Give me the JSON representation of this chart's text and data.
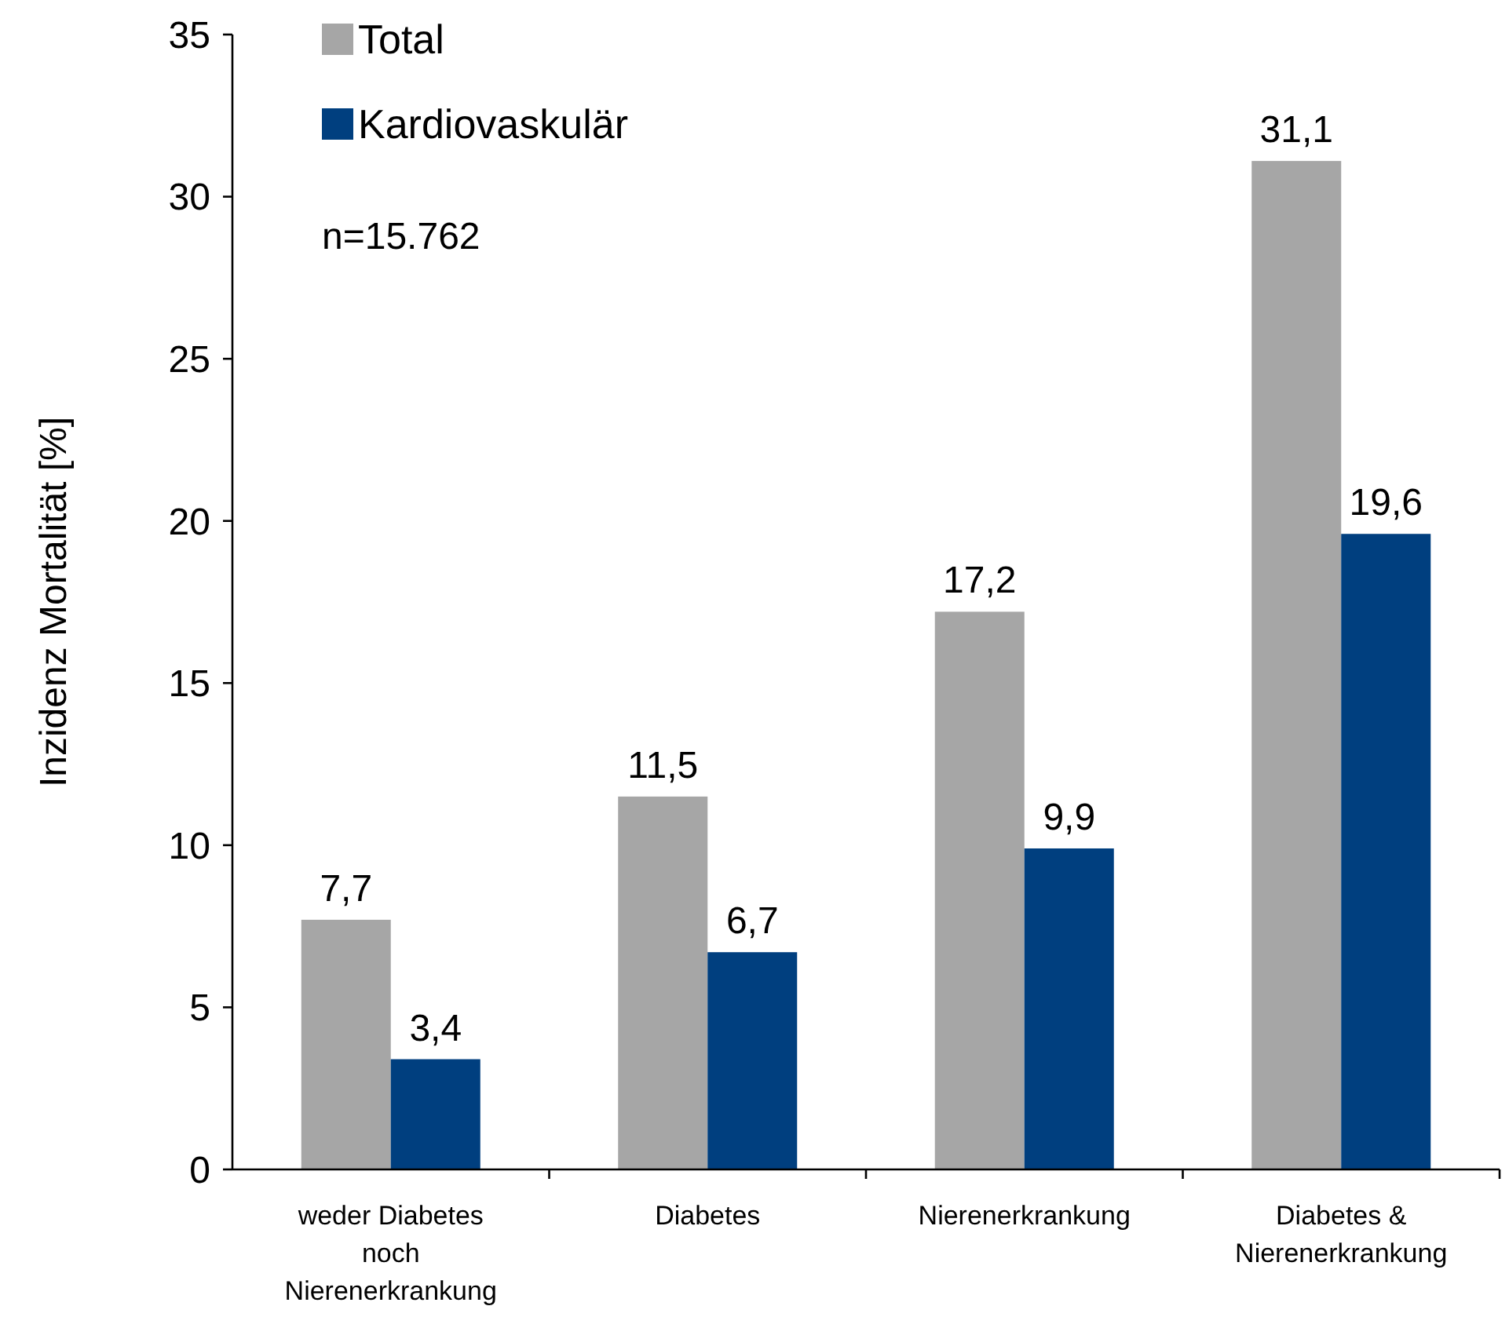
{
  "chart_data": {
    "type": "bar",
    "ylabel": "Inzidenz Mortalität [%]",
    "categories": [
      "weder Diabetes noch Nierenerkrankung",
      "Diabetes",
      "Nierenerkrankung",
      "Diabetes & Nierenerkrankung"
    ],
    "series": [
      {
        "name": "Total",
        "color": "#a6a6a6",
        "values": [
          7.7,
          11.5,
          17.2,
          31.1
        ],
        "value_labels": [
          "7,7",
          "11,5",
          "17,2",
          "31,1"
        ]
      },
      {
        "name": "Kardiovaskulär",
        "color": "#003f7f",
        "values": [
          3.4,
          6.7,
          9.9,
          19.6
        ],
        "value_labels": [
          "3,4",
          "6,7",
          "9,9",
          "19,6"
        ]
      }
    ],
    "ylim": [
      0,
      35
    ],
    "yticks": [
      0,
      5,
      10,
      15,
      20,
      25,
      30,
      35
    ],
    "grid": false,
    "legend": "top left",
    "annotations": [
      "n=15.762"
    ]
  }
}
